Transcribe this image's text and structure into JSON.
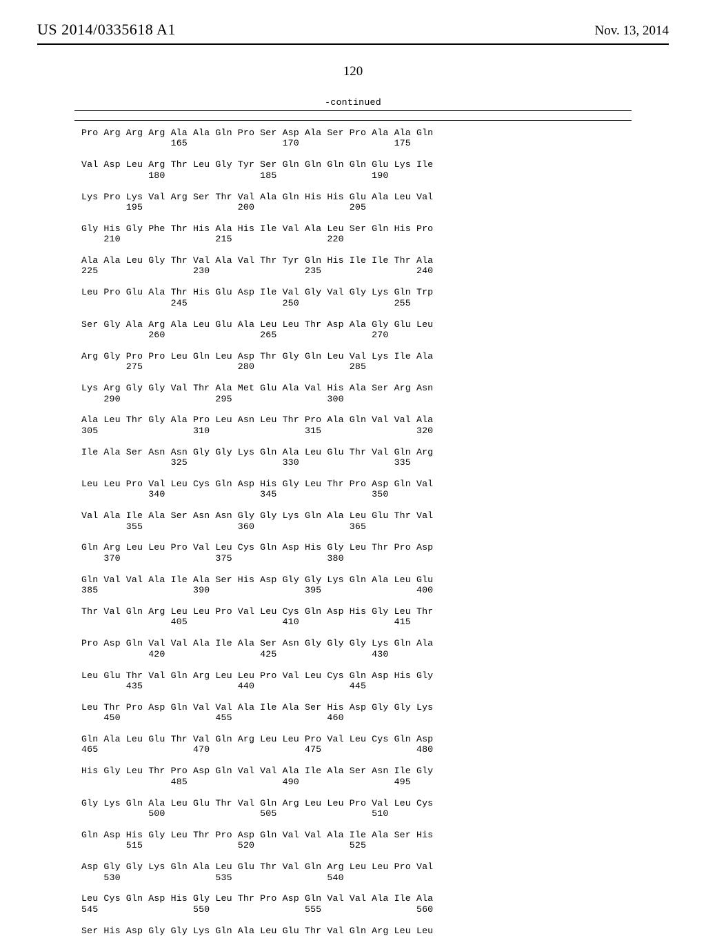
{
  "header": {
    "pubnum": "US 2014/0335618 A1",
    "pubdate": "Nov. 13, 2014"
  },
  "pagenum": "120",
  "continued": "-continued",
  "blocks": [
    {
      "aa": "Pro Arg Arg Arg Ala Ala Gln Pro Ser Asp Ala Ser Pro Ala Ala Gln",
      "nums": "                165                 170                 175"
    },
    {
      "aa": "Val Asp Leu Arg Thr Leu Gly Tyr Ser Gln Gln Gln Gln Glu Lys Ile",
      "nums": "            180                 185                 190"
    },
    {
      "aa": "Lys Pro Lys Val Arg Ser Thr Val Ala Gln His His Glu Ala Leu Val",
      "nums": "        195                 200                 205"
    },
    {
      "aa": "Gly His Gly Phe Thr His Ala His Ile Val Ala Leu Ser Gln His Pro",
      "nums": "    210                 215                 220"
    },
    {
      "aa": "Ala Ala Leu Gly Thr Val Ala Val Thr Tyr Gln His Ile Ile Thr Ala",
      "nums": "225                 230                 235                 240"
    },
    {
      "aa": "Leu Pro Glu Ala Thr His Glu Asp Ile Val Gly Val Gly Lys Gln Trp",
      "nums": "                245                 250                 255"
    },
    {
      "aa": "Ser Gly Ala Arg Ala Leu Glu Ala Leu Leu Thr Asp Ala Gly Glu Leu",
      "nums": "            260                 265                 270"
    },
    {
      "aa": "Arg Gly Pro Pro Leu Gln Leu Asp Thr Gly Gln Leu Val Lys Ile Ala",
      "nums": "        275                 280                 285"
    },
    {
      "aa": "Lys Arg Gly Gly Val Thr Ala Met Glu Ala Val His Ala Ser Arg Asn",
      "nums": "    290                 295                 300"
    },
    {
      "aa": "Ala Leu Thr Gly Ala Pro Leu Asn Leu Thr Pro Ala Gln Val Val Ala",
      "nums": "305                 310                 315                 320"
    },
    {
      "aa": "Ile Ala Ser Asn Asn Gly Gly Lys Gln Ala Leu Glu Thr Val Gln Arg",
      "nums": "                325                 330                 335"
    },
    {
      "aa": "Leu Leu Pro Val Leu Cys Gln Asp His Gly Leu Thr Pro Asp Gln Val",
      "nums": "            340                 345                 350"
    },
    {
      "aa": "Val Ala Ile Ala Ser Asn Asn Gly Gly Lys Gln Ala Leu Glu Thr Val",
      "nums": "        355                 360                 365"
    },
    {
      "aa": "Gln Arg Leu Leu Pro Val Leu Cys Gln Asp His Gly Leu Thr Pro Asp",
      "nums": "    370                 375                 380"
    },
    {
      "aa": "Gln Val Val Ala Ile Ala Ser His Asp Gly Gly Lys Gln Ala Leu Glu",
      "nums": "385                 390                 395                 400"
    },
    {
      "aa": "Thr Val Gln Arg Leu Leu Pro Val Leu Cys Gln Asp His Gly Leu Thr",
      "nums": "                405                 410                 415"
    },
    {
      "aa": "Pro Asp Gln Val Val Ala Ile Ala Ser Asn Gly Gly Gly Lys Gln Ala",
      "nums": "            420                 425                 430"
    },
    {
      "aa": "Leu Glu Thr Val Gln Arg Leu Leu Pro Val Leu Cys Gln Asp His Gly",
      "nums": "        435                 440                 445"
    },
    {
      "aa": "Leu Thr Pro Asp Gln Val Val Ala Ile Ala Ser His Asp Gly Gly Lys",
      "nums": "    450                 455                 460"
    },
    {
      "aa": "Gln Ala Leu Glu Thr Val Gln Arg Leu Leu Pro Val Leu Cys Gln Asp",
      "nums": "465                 470                 475                 480"
    },
    {
      "aa": "His Gly Leu Thr Pro Asp Gln Val Val Ala Ile Ala Ser Asn Ile Gly",
      "nums": "                485                 490                 495"
    },
    {
      "aa": "Gly Lys Gln Ala Leu Glu Thr Val Gln Arg Leu Leu Pro Val Leu Cys",
      "nums": "            500                 505                 510"
    },
    {
      "aa": "Gln Asp His Gly Leu Thr Pro Asp Gln Val Val Ala Ile Ala Ser His",
      "nums": "        515                 520                 525"
    },
    {
      "aa": "Asp Gly Gly Lys Gln Ala Leu Glu Thr Val Gln Arg Leu Leu Pro Val",
      "nums": "    530                 535                 540"
    },
    {
      "aa": "Leu Cys Gln Asp His Gly Leu Thr Pro Asp Gln Val Val Ala Ile Ala",
      "nums": "545                 550                 555                 560"
    },
    {
      "aa": "Ser His Asp Gly Gly Lys Gln Ala Leu Glu Thr Val Gln Arg Leu Leu",
      "nums": ""
    }
  ]
}
